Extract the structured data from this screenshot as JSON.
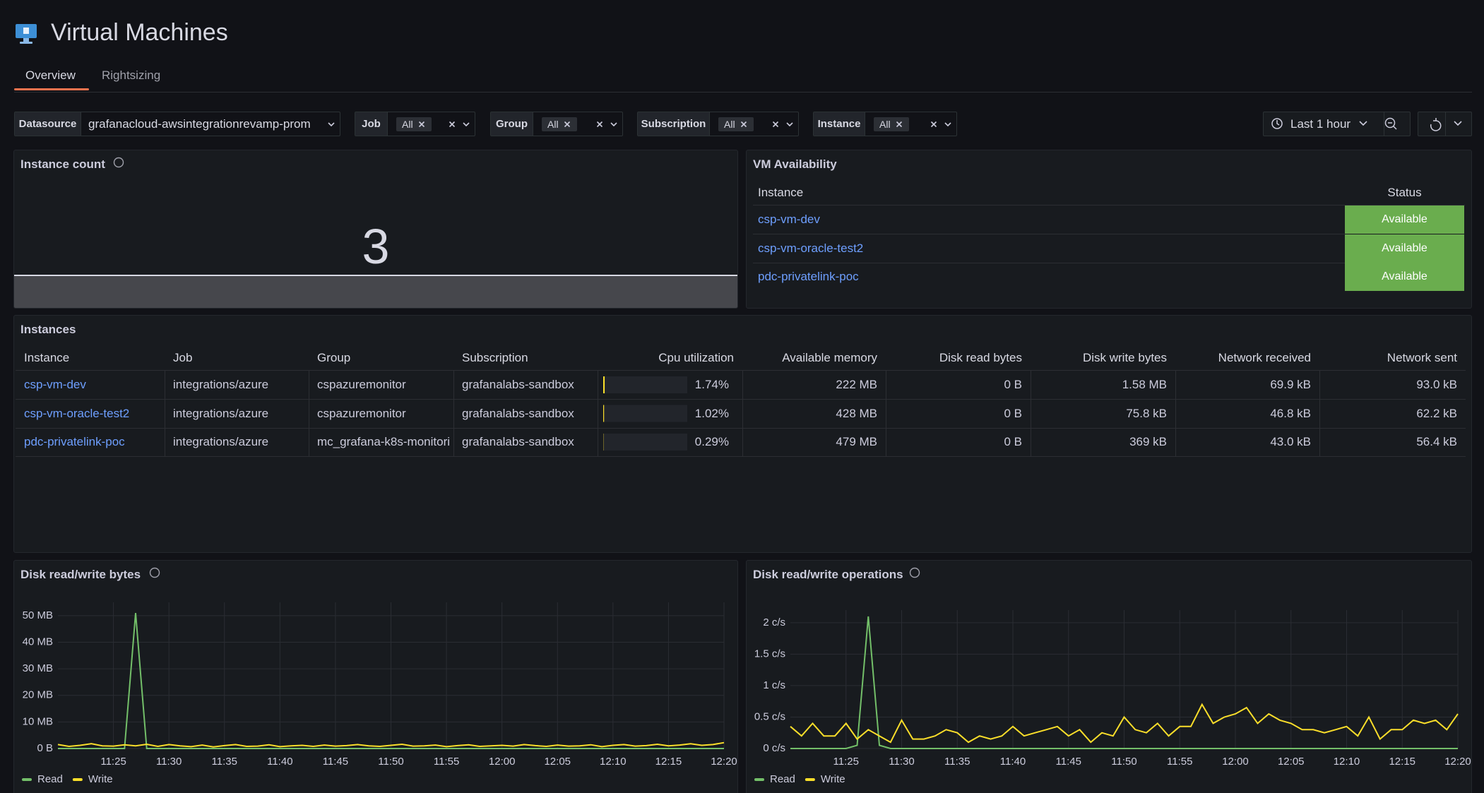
{
  "header": {
    "title": "Virtual Machines"
  },
  "tabs": [
    "Overview",
    "Rightsizing"
  ],
  "filters": [
    {
      "label": "Datasource",
      "value": "grafanacloud-awsintegrationrevamp-prom"
    },
    {
      "label": "Job",
      "value": "All"
    },
    {
      "label": "Group",
      "value": "All"
    },
    {
      "label": "Subscription",
      "value": "All"
    },
    {
      "label": "Instance",
      "value": "All"
    }
  ],
  "time_range": "Last 1 hour",
  "instance_count": {
    "title": "Instance count",
    "value": 3
  },
  "vm_availability": {
    "title": "VM Availability",
    "columns": [
      "Instance",
      "Status"
    ],
    "rows": [
      [
        "csp-vm-dev",
        "Available"
      ],
      [
        "csp-vm-oracle-test2",
        "Available"
      ],
      [
        "pdc-privatelink-poc",
        "Available"
      ]
    ]
  },
  "instances": {
    "title": "Instances",
    "columns": [
      "Instance",
      "Job",
      "Group",
      "Subscription",
      "Cpu utilization",
      "Available memory",
      "Disk read bytes",
      "Disk write bytes",
      "Network received",
      "Network sent"
    ],
    "rows": [
      [
        "csp-vm-dev",
        "integrations/azure",
        "cspazuremonitor",
        "grafanalabs-sandbox",
        {
          "value": 1.74,
          "label": "1.74%"
        },
        "222 MB",
        "0 B",
        "1.58 MB",
        "69.9 kB",
        "93.0 kB"
      ],
      [
        "csp-vm-oracle-test2",
        "integrations/azure",
        "cspazuremonitor",
        "grafanalabs-sandbox",
        {
          "value": 1.02,
          "label": "1.02%"
        },
        "428 MB",
        "0 B",
        "75.8 kB",
        "46.8 kB",
        "62.2 kB"
      ],
      [
        "pdc-privatelink-poc",
        "integrations/azure",
        "mc_grafana-k8s-monitori",
        "grafanalabs-sandbox",
        {
          "value": 0.29,
          "label": "0.29%"
        },
        "479 MB",
        "0 B",
        "369 kB",
        "43.0 kB",
        "56.4 kB"
      ]
    ]
  },
  "chart_data": [
    {
      "type": "line",
      "title": "Disk read/write bytes",
      "x": [
        "11:20",
        "11:21",
        "11:22",
        "11:23",
        "11:24",
        "11:25",
        "11:26",
        "11:27",
        "11:28",
        "11:29",
        "11:30",
        "11:31",
        "11:32",
        "11:33",
        "11:34",
        "11:35",
        "11:36",
        "11:37",
        "11:38",
        "11:39",
        "11:40",
        "11:41",
        "11:42",
        "11:43",
        "11:44",
        "11:45",
        "11:46",
        "11:47",
        "11:48",
        "11:49",
        "11:50",
        "11:51",
        "11:52",
        "11:53",
        "11:54",
        "11:55",
        "11:56",
        "11:57",
        "11:58",
        "11:59",
        "12:00",
        "12:01",
        "12:02",
        "12:03",
        "12:04",
        "12:05",
        "12:06",
        "12:07",
        "12:08",
        "12:09",
        "12:10",
        "12:11",
        "12:12",
        "12:13",
        "12:14",
        "12:15",
        "12:16",
        "12:17",
        "12:18",
        "12:19",
        "12:20"
      ],
      "xticks": [
        "11:25",
        "11:30",
        "11:35",
        "11:40",
        "11:45",
        "11:50",
        "11:55",
        "12:00",
        "12:05",
        "12:10",
        "12:15",
        "12:20"
      ],
      "ylim": [
        0,
        55
      ],
      "yticks": [
        {
          "value": 0,
          "label": "0 B"
        },
        {
          "value": 10,
          "label": "10 MB"
        },
        {
          "value": 20,
          "label": "20 MB"
        },
        {
          "value": 30,
          "label": "30 MB"
        },
        {
          "value": 40,
          "label": "40 MB"
        },
        {
          "value": 50,
          "label": "50 MB"
        }
      ],
      "grid": true,
      "series": [
        {
          "name": "Read",
          "color": "#73bf69",
          "values": [
            0,
            0,
            0,
            0,
            0,
            0,
            0,
            51,
            0,
            0,
            0,
            0,
            0,
            0,
            0,
            0,
            0,
            0,
            0,
            0,
            0,
            0,
            0,
            0,
            0,
            0,
            0,
            0,
            0,
            0,
            0,
            0,
            0,
            0,
            0,
            0,
            0,
            0,
            0,
            0,
            0,
            0,
            0,
            0,
            0,
            0,
            0,
            0,
            0,
            0,
            0,
            0,
            0,
            0,
            0,
            0,
            0,
            0,
            0,
            0,
            0
          ]
        },
        {
          "name": "Write",
          "color": "#fade2a",
          "values": [
            1.5,
            0.8,
            1.2,
            1.8,
            1.0,
            0.9,
            1.4,
            1.0,
            1.6,
            0.8,
            1.5,
            1.0,
            0.7,
            1.3,
            0.6,
            1.1,
            1.5,
            0.8,
            0.9,
            1.4,
            0.7,
            1.0,
            1.2,
            0.8,
            1.3,
            0.9,
            1.1,
            1.5,
            1.0,
            0.8,
            1.2,
            1.6,
            0.9,
            1.0,
            1.3,
            0.7,
            1.1,
            1.4,
            0.8,
            1.0,
            1.2,
            0.9,
            1.5,
            1.1,
            0.8,
            1.3,
            0.9,
            1.0,
            1.4,
            0.7,
            1.2,
            1.5,
            0.9,
            1.1,
            1.6,
            1.0,
            1.3,
            1.8,
            1.2,
            1.5,
            2.2
          ]
        }
      ]
    },
    {
      "type": "line",
      "title": "Disk read/write operations",
      "x": [
        "11:20",
        "11:21",
        "11:22",
        "11:23",
        "11:24",
        "11:25",
        "11:26",
        "11:27",
        "11:28",
        "11:29",
        "11:30",
        "11:31",
        "11:32",
        "11:33",
        "11:34",
        "11:35",
        "11:36",
        "11:37",
        "11:38",
        "11:39",
        "11:40",
        "11:41",
        "11:42",
        "11:43",
        "11:44",
        "11:45",
        "11:46",
        "11:47",
        "11:48",
        "11:49",
        "11:50",
        "11:51",
        "11:52",
        "11:53",
        "11:54",
        "11:55",
        "11:56",
        "11:57",
        "11:58",
        "11:59",
        "12:00",
        "12:01",
        "12:02",
        "12:03",
        "12:04",
        "12:05",
        "12:06",
        "12:07",
        "12:08",
        "12:09",
        "12:10",
        "12:11",
        "12:12",
        "12:13",
        "12:14",
        "12:15",
        "12:16",
        "12:17",
        "12:18",
        "12:19",
        "12:20"
      ],
      "xticks": [
        "11:25",
        "11:30",
        "11:35",
        "11:40",
        "11:45",
        "11:50",
        "11:55",
        "12:00",
        "12:05",
        "12:10",
        "12:15",
        "12:20"
      ],
      "ylim": [
        0,
        2.2
      ],
      "yticks": [
        {
          "value": 0,
          "label": "0 c/s"
        },
        {
          "value": 0.5,
          "label": "0.5 c/s"
        },
        {
          "value": 1,
          "label": "1 c/s"
        },
        {
          "value": 1.5,
          "label": "1.5 c/s"
        },
        {
          "value": 2,
          "label": "2 c/s"
        }
      ],
      "grid": true,
      "series": [
        {
          "name": "Read",
          "color": "#73bf69",
          "values": [
            0,
            0,
            0,
            0,
            0,
            0,
            0.05,
            2.1,
            0.05,
            0,
            0,
            0,
            0,
            0,
            0,
            0,
            0,
            0,
            0,
            0,
            0,
            0,
            0,
            0,
            0,
            0,
            0,
            0,
            0,
            0,
            0,
            0,
            0,
            0,
            0,
            0,
            0,
            0,
            0,
            0,
            0,
            0,
            0,
            0,
            0,
            0,
            0,
            0,
            0,
            0,
            0,
            0,
            0,
            0,
            0,
            0,
            0,
            0,
            0,
            0,
            0
          ]
        },
        {
          "name": "Write",
          "color": "#fade2a",
          "values": [
            0.35,
            0.2,
            0.4,
            0.2,
            0.2,
            0.4,
            0.15,
            0.3,
            0.2,
            0.1,
            0.45,
            0.15,
            0.15,
            0.2,
            0.3,
            0.25,
            0.1,
            0.2,
            0.15,
            0.2,
            0.35,
            0.2,
            0.25,
            0.3,
            0.35,
            0.2,
            0.3,
            0.1,
            0.25,
            0.2,
            0.5,
            0.3,
            0.25,
            0.4,
            0.2,
            0.35,
            0.35,
            0.7,
            0.4,
            0.5,
            0.55,
            0.65,
            0.4,
            0.55,
            0.45,
            0.4,
            0.3,
            0.3,
            0.25,
            0.3,
            0.35,
            0.2,
            0.5,
            0.15,
            0.3,
            0.3,
            0.45,
            0.4,
            0.45,
            0.3,
            0.55
          ]
        }
      ]
    }
  ]
}
